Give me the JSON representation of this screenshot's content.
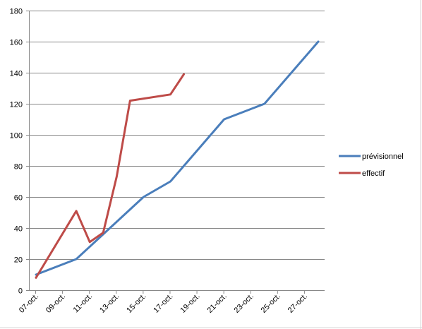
{
  "chart_data": {
    "type": "line",
    "title": "",
    "xlabel": "",
    "ylabel": "",
    "ylim": [
      0,
      180
    ],
    "y_ticks": [
      0,
      20,
      40,
      60,
      80,
      100,
      120,
      140,
      160,
      180
    ],
    "x_tick_labels": [
      "07-oct.",
      "09-oct.",
      "11-oct.",
      "13-oct.",
      "15-oct.",
      "17-oct.",
      "19-oct.",
      "21-oct.",
      "23-oct.",
      "25-oct.",
      "27-oct."
    ],
    "x_tick_dates": [
      "2024-10-07",
      "2024-10-09",
      "2024-10-11",
      "2024-10-13",
      "2024-10-15",
      "2024-10-17",
      "2024-10-19",
      "2024-10-21",
      "2024-10-23",
      "2024-10-25",
      "2024-10-27"
    ],
    "xlim": [
      "2024-10-07",
      "2024-10-29"
    ],
    "grid": true,
    "legend_position": "right",
    "series": [
      {
        "name": "prévisionnel",
        "color": "#4a7ebb",
        "points": [
          {
            "x": "2024-10-07",
            "y": 10
          },
          {
            "x": "2024-10-10",
            "y": 20
          },
          {
            "x": "2024-10-15",
            "y": 60
          },
          {
            "x": "2024-10-17",
            "y": 70
          },
          {
            "x": "2024-10-21",
            "y": 110
          },
          {
            "x": "2024-10-24",
            "y": 120
          },
          {
            "x": "2024-10-28",
            "y": 160
          }
        ]
      },
      {
        "name": "effectif",
        "color": "#be4b48",
        "points": [
          {
            "x": "2024-10-07",
            "y": 8
          },
          {
            "x": "2024-10-10",
            "y": 51
          },
          {
            "x": "2024-10-11",
            "y": 31
          },
          {
            "x": "2024-10-12",
            "y": 37
          },
          {
            "x": "2024-10-13",
            "y": 73
          },
          {
            "x": "2024-10-14",
            "y": 122
          },
          {
            "x": "2024-10-17",
            "y": 126
          },
          {
            "x": "2024-10-18",
            "y": 139
          }
        ]
      }
    ]
  }
}
